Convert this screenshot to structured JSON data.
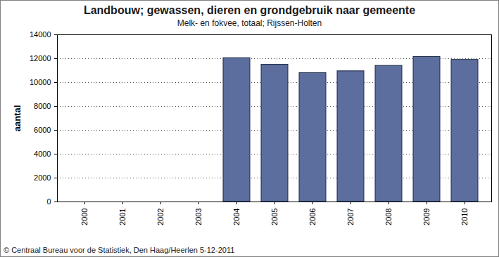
{
  "chart_data": {
    "type": "bar",
    "title": "Landbouw; gewassen, dieren en grondgebruik naar gemeente",
    "subtitle": "Melk- en fokvee, totaal; Rijssen-Holten",
    "caption": "© Centraal Bureau voor de Statistiek, Den Haag/Heerlen 5-12-2011",
    "y_label": "aantal",
    "categories": [
      "2000",
      "2001",
      "2002",
      "2003",
      "2004",
      "2005",
      "2006",
      "2007",
      "2008",
      "2009",
      "2010"
    ],
    "values": [
      null,
      null,
      null,
      null,
      12050,
      11500,
      10800,
      10950,
      11400,
      12150,
      11900
    ],
    "color": "#5b6e9e",
    "ylim": [
      0,
      14000
    ],
    "yticks": [
      0,
      2000,
      4000,
      6000,
      8000,
      10000,
      12000,
      14000
    ],
    "grid": true
  }
}
